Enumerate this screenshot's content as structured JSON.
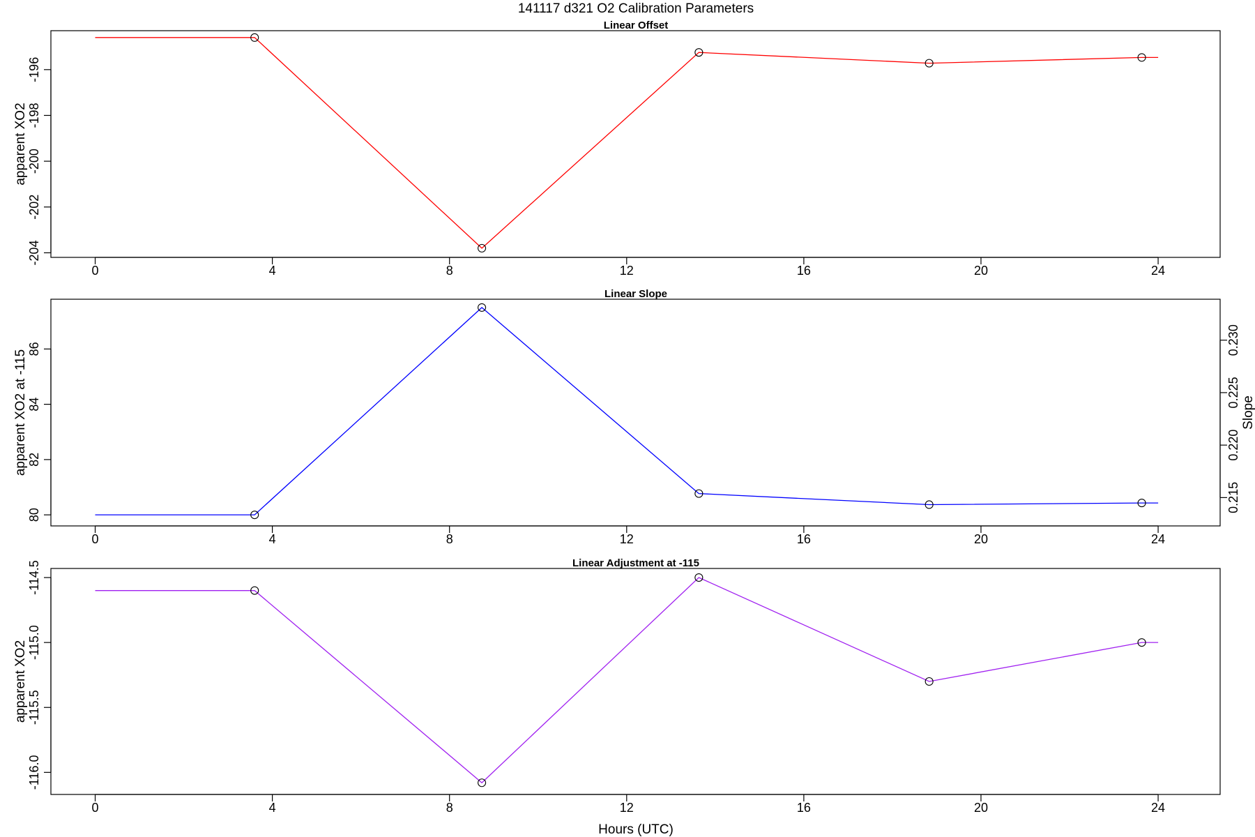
{
  "title": "141117   d321   O2 Calibration Parameters",
  "xlabel": "Hours (UTC)",
  "chart_data": [
    {
      "type": "line",
      "title": "Linear Offset",
      "ylabel": "apparent XO2",
      "xlim": [
        -1,
        25.4
      ],
      "ylim": [
        -204.2,
        -194.3
      ],
      "x_ticks": [
        0,
        4,
        8,
        12,
        16,
        20,
        24
      ],
      "y_ticks": [
        -204,
        -202,
        -200,
        -198,
        -196
      ],
      "line_x": [
        0,
        3.6,
        8.73,
        13.63,
        18.83,
        23.63,
        24
      ],
      "line_y": [
        -194.6,
        -194.6,
        -203.8,
        -195.25,
        -195.72,
        -195.47,
        -195.47
      ],
      "points_x": [
        3.6,
        8.73,
        13.63,
        18.83,
        23.63
      ],
      "points_y": [
        -194.6,
        -203.8,
        -195.25,
        -195.72,
        -195.47
      ],
      "color": "#ff0000"
    },
    {
      "type": "line",
      "title": "Linear Slope",
      "ylabel": "apparent XO2 at -115",
      "y2label": "Slope",
      "xlim": [
        -1,
        25.4
      ],
      "ylim": [
        79.6,
        87.8
      ],
      "y2lim": [
        0.2123,
        0.2339
      ],
      "x_ticks": [
        0,
        4,
        8,
        12,
        16,
        20,
        24
      ],
      "y_ticks": [
        80,
        82,
        84,
        86
      ],
      "y2_ticks": [
        0.215,
        0.22,
        0.225,
        0.23
      ],
      "y2_tick_labels": [
        "0.215",
        "0.220",
        "0.225",
        "0.230"
      ],
      "line_x": [
        0,
        3.6,
        8.73,
        13.63,
        18.83,
        23.63,
        24
      ],
      "line_y": [
        80.0,
        80.0,
        87.5,
        80.77,
        80.37,
        80.43,
        80.43
      ],
      "points_x": [
        3.6,
        8.73,
        13.63,
        18.83,
        23.63
      ],
      "points_y": [
        80.0,
        87.5,
        80.77,
        80.37,
        80.43
      ],
      "color": "#0000ff"
    },
    {
      "type": "line",
      "title": "Linear Adjustment at -115",
      "ylabel": "apparent XO2",
      "xlim": [
        -1,
        25.4
      ],
      "ylim": [
        -116.17,
        -114.43
      ],
      "x_ticks": [
        0,
        4,
        8,
        12,
        16,
        20,
        24
      ],
      "y_ticks": [
        -116.0,
        -115.5,
        -115.0,
        -114.5
      ],
      "y_tick_labels": [
        "-116.0",
        "-115.5",
        "-115.0",
        "-114.5"
      ],
      "line_x": [
        0,
        3.6,
        8.73,
        13.63,
        18.83,
        23.63,
        24
      ],
      "line_y": [
        -114.6,
        -114.6,
        -116.08,
        -114.5,
        -115.3,
        -115.0,
        -115.0
      ],
      "points_x": [
        3.6,
        8.73,
        13.63,
        18.83,
        23.63
      ],
      "points_y": [
        -114.6,
        -116.08,
        -114.5,
        -115.3,
        -115.0
      ],
      "color": "#a020f0"
    }
  ]
}
